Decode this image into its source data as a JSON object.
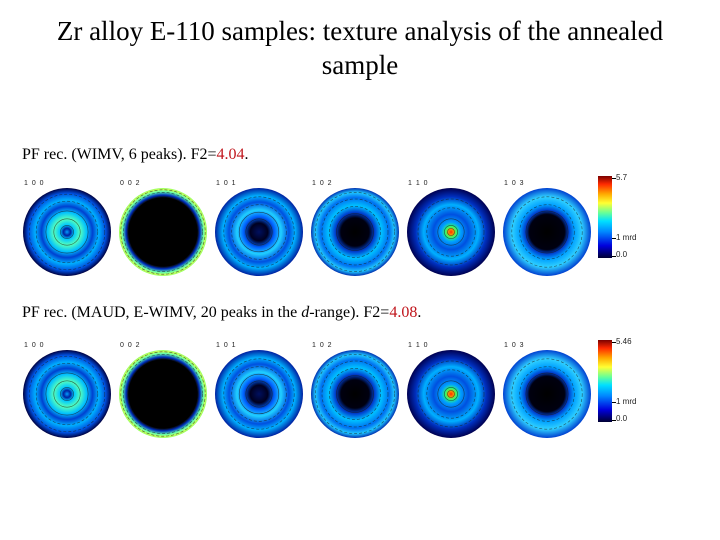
{
  "title": "Zr alloy E-110 samples: texture analysis of the annealed sample",
  "panels": [
    {
      "caption_pre": "PF rec. (WIMV, 6 peaks). F2=",
      "caption_emph": "",
      "caption_mid": "",
      "caption_val": "4.04",
      "caption_end": ".",
      "poles": [
        "1 0 0",
        "0 0 2",
        "1 0 1",
        "1 0 2",
        "1 1 0",
        "1 0 3"
      ],
      "colorbar": {
        "max": "5.7",
        "mid": "1 mrd",
        "min": "0.0"
      }
    },
    {
      "caption_pre": "PF rec. (MAUD,  E-WIMV, 20 peaks in the ",
      "caption_emph": "d",
      "caption_mid": "-range). F2=",
      "caption_val": "4.08",
      "caption_end": ".",
      "poles": [
        "1 0 0",
        "0 0 2",
        "1 0 1",
        "1 0 2",
        "1 1 0",
        "1 0 3"
      ],
      "colorbar": {
        "max": "5.46",
        "mid": "1 mrd",
        "min": "0.0"
      }
    }
  ]
}
